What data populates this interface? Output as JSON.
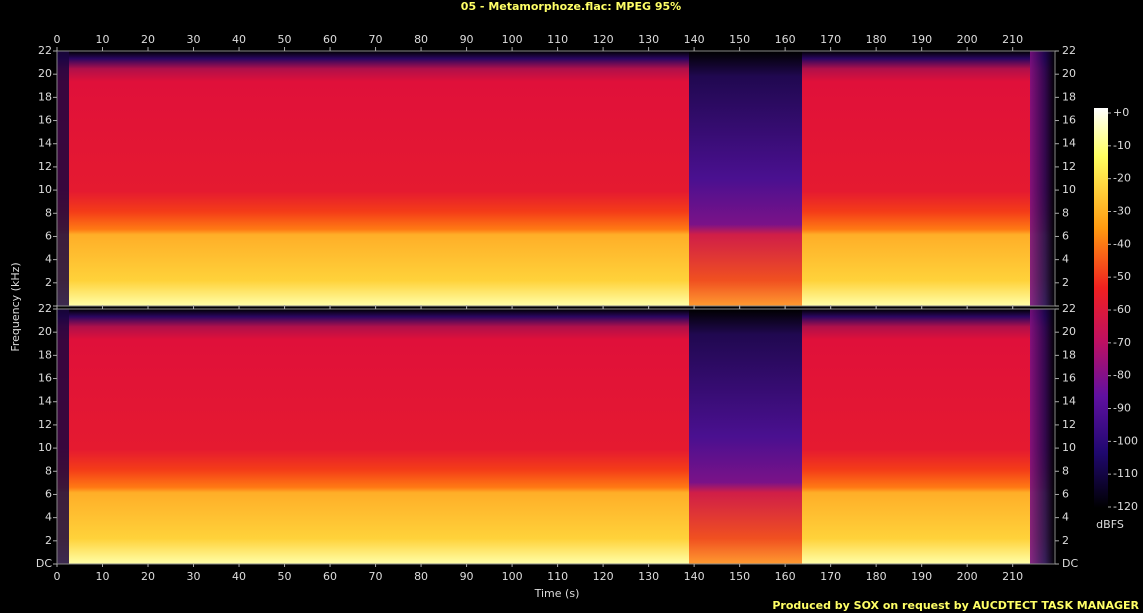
{
  "chart_data": {
    "type": "spectrogram",
    "title": "05 - Metamorphoze.flac: MPEG 95%",
    "x_label": "Time (s)",
    "y_label": "Frequency (kHz)",
    "xlim": [
      0,
      219.3
    ],
    "xticks": [
      0,
      10,
      20,
      30,
      40,
      50,
      60,
      70,
      80,
      90,
      100,
      110,
      120,
      130,
      140,
      150,
      160,
      170,
      180,
      190,
      200,
      210
    ],
    "ylim": [
      0,
      22
    ],
    "yticks": [
      {
        "value": 0,
        "label": "DC"
      },
      2,
      4,
      6,
      8,
      10,
      12,
      14,
      16,
      18,
      20,
      22
    ],
    "colorbar_label": "dBFS",
    "clim": [
      -120,
      0
    ],
    "cticks": [
      {
        "value": 0,
        "label": "+0"
      },
      -10,
      -20,
      -30,
      -40,
      -50,
      -60,
      -70,
      -80,
      -90,
      -100,
      -110,
      -120
    ],
    "footer": "Produced by SOX on request by AUCDTECT TASK MANAGER"
  }
}
